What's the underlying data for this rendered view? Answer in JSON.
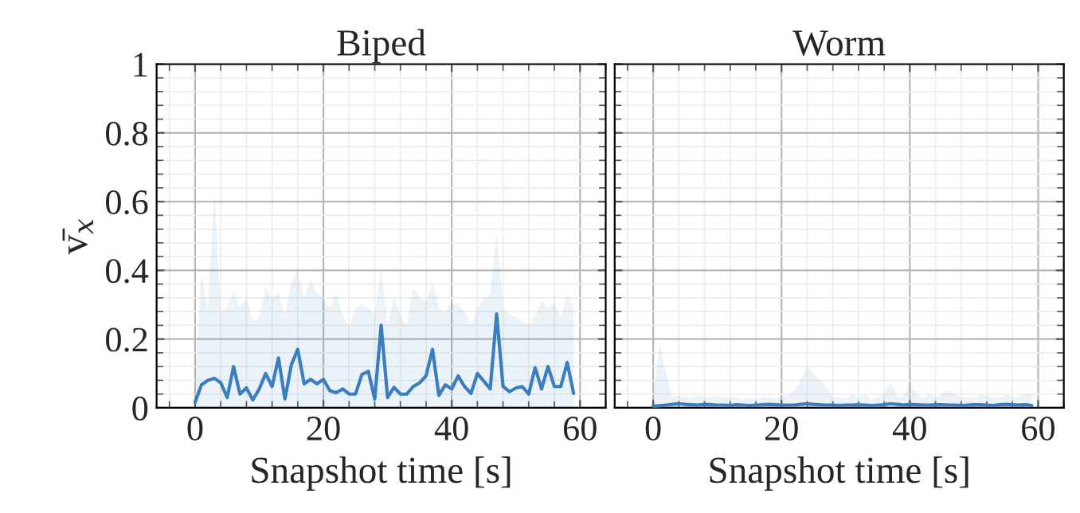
{
  "chart_data": [
    {
      "type": "line",
      "title": "Biped",
      "xlabel": "Snapshot time [s]",
      "ylabel": "v̄$_{x}$",
      "x": [
        0,
        1,
        2,
        3,
        4,
        5,
        6,
        7,
        8,
        9,
        10,
        11,
        12,
        13,
        14,
        15,
        16,
        17,
        18,
        19,
        20,
        21,
        22,
        23,
        24,
        25,
        26,
        27,
        28,
        29,
        30,
        31,
        32,
        33,
        34,
        35,
        36,
        37,
        38,
        39,
        40,
        41,
        42,
        43,
        44,
        45,
        46,
        47,
        48,
        49,
        50,
        51,
        52,
        53,
        54,
        55,
        56,
        57,
        58,
        59
      ],
      "xlim": [
        -6,
        64
      ],
      "ylim": [
        0,
        1
      ],
      "xticks": [
        0,
        20,
        40,
        60
      ],
      "yticks": [
        0,
        0.2,
        0.4,
        0.6,
        0.8,
        1
      ],
      "grid": true,
      "series": [
        {
          "color": "#3a7ebf",
          "values": [
            0.016,
            0.067,
            0.08,
            0.086,
            0.073,
            0.03,
            0.12,
            0.04,
            0.058,
            0.023,
            0.055,
            0.1,
            0.062,
            0.145,
            0.026,
            0.125,
            0.17,
            0.07,
            0.083,
            0.07,
            0.083,
            0.05,
            0.044,
            0.055,
            0.04,
            0.04,
            0.097,
            0.106,
            0.026,
            0.24,
            0.03,
            0.06,
            0.04,
            0.04,
            0.062,
            0.073,
            0.093,
            0.17,
            0.036,
            0.067,
            0.055,
            0.093,
            0.062,
            0.042,
            0.1,
            0.078,
            0.055,
            0.273,
            0.062,
            0.047,
            0.058,
            0.062,
            0.04,
            0.117,
            0.055,
            0.12,
            0.062,
            0.062,
            0.132,
            0.042
          ],
          "lower": [
            0,
            0,
            0,
            0,
            0,
            0,
            0,
            0,
            0,
            0,
            0,
            0,
            0,
            0,
            0,
            0,
            0,
            0,
            0,
            0,
            0,
            0,
            0,
            0,
            0,
            0,
            0,
            0,
            0,
            0,
            0,
            0,
            0,
            0,
            0,
            0,
            0,
            0,
            0,
            0,
            0,
            0,
            0,
            0,
            0,
            0,
            0,
            0,
            0,
            0,
            0,
            0,
            0,
            0,
            0,
            0,
            0,
            0,
            0,
            0
          ],
          "upper": [
            0.1,
            0.39,
            0.28,
            0.63,
            0.28,
            0.29,
            0.34,
            0.29,
            0.32,
            0.25,
            0.265,
            0.35,
            0.32,
            0.335,
            0.27,
            0.365,
            0.4,
            0.32,
            0.375,
            0.335,
            0.32,
            0.29,
            0.335,
            0.27,
            0.235,
            0.29,
            0.3,
            0.29,
            0.27,
            0.41,
            0.24,
            0.32,
            0.27,
            0.24,
            0.35,
            0.32,
            0.31,
            0.365,
            0.29,
            0.28,
            0.305,
            0.305,
            0.28,
            0.24,
            0.29,
            0.32,
            0.33,
            0.51,
            0.29,
            0.27,
            0.265,
            0.25,
            0.24,
            0.27,
            0.31,
            0.29,
            0.305,
            0.265,
            0.33,
            0.29
          ]
        }
      ]
    },
    {
      "type": "line",
      "title": "Worm",
      "xlabel": "Snapshot time [s]",
      "x": [
        0,
        1,
        2,
        3,
        4,
        5,
        6,
        7,
        8,
        9,
        10,
        11,
        12,
        13,
        14,
        15,
        16,
        17,
        18,
        19,
        20,
        21,
        22,
        23,
        24,
        25,
        26,
        27,
        28,
        29,
        30,
        31,
        32,
        33,
        34,
        35,
        36,
        37,
        38,
        39,
        40,
        41,
        42,
        43,
        44,
        45,
        46,
        47,
        48,
        49,
        50,
        51,
        52,
        53,
        54,
        55,
        56,
        57,
        58,
        59
      ],
      "xlim": [
        -6,
        64
      ],
      "ylim": [
        0,
        1
      ],
      "xticks": [
        0,
        20,
        40,
        60
      ],
      "yticks": [
        0,
        0.2,
        0.4,
        0.6,
        0.8,
        1
      ],
      "grid": true,
      "tick_labels": "x",
      "series": [
        {
          "color": "#3a7ebf",
          "values": [
            0.005,
            0.006,
            0.008,
            0.01,
            0.012,
            0.01,
            0.009,
            0.008,
            0.01,
            0.009,
            0.008,
            0.008,
            0.007,
            0.009,
            0.008,
            0.007,
            0.008,
            0.009,
            0.01,
            0.009,
            0.008,
            0.008,
            0.008,
            0.01,
            0.012,
            0.01,
            0.009,
            0.008,
            0.008,
            0.007,
            0.008,
            0.008,
            0.009,
            0.008,
            0.007,
            0.008,
            0.009,
            0.012,
            0.01,
            0.008,
            0.01,
            0.009,
            0.008,
            0.008,
            0.009,
            0.009,
            0.008,
            0.008,
            0.007,
            0.008,
            0.009,
            0.009,
            0.008,
            0.007,
            0.009,
            0.01,
            0.009,
            0.008,
            0.009,
            0.007
          ],
          "lower": [
            0,
            0,
            0,
            0,
            0,
            0,
            0,
            0,
            0,
            0,
            0,
            0,
            0,
            0,
            0,
            0,
            0,
            0,
            0,
            0,
            0,
            0,
            0,
            0,
            0,
            0,
            0,
            0,
            0,
            0,
            0,
            0,
            0,
            0,
            0,
            0,
            0,
            0,
            0,
            0,
            0,
            0,
            0,
            0,
            0,
            0,
            0,
            0,
            0,
            0,
            0,
            0,
            0,
            0,
            0,
            0,
            0,
            0,
            0,
            0
          ],
          "upper": [
            0.02,
            0.19,
            0.1,
            0.03,
            0.035,
            0.03,
            0.03,
            0.035,
            0.03,
            0.03,
            0.035,
            0.03,
            0.03,
            0.03,
            0.025,
            0.03,
            0.025,
            0.03,
            0.03,
            0.025,
            0.03,
            0.035,
            0.05,
            0.08,
            0.12,
            0.1,
            0.08,
            0.06,
            0.03,
            0.03,
            0.025,
            0.04,
            0.03,
            0.04,
            0.025,
            0.03,
            0.04,
            0.08,
            0.03,
            0.03,
            0.075,
            0.04,
            0.03,
            0.04,
            0.03,
            0.04,
            0.05,
            0.04,
            0.03,
            0.03,
            0.03,
            0.04,
            0.035,
            0.03,
            0.03,
            0.04,
            0.03,
            0.03,
            0.04,
            0.04
          ]
        }
      ]
    }
  ]
}
